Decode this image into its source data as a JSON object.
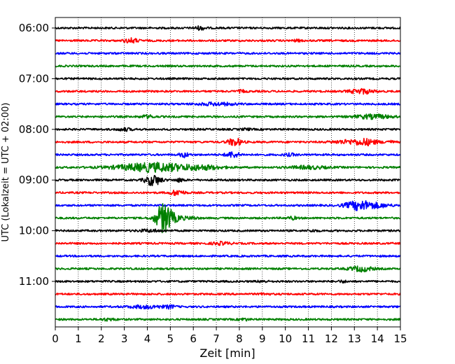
{
  "chart_data": {
    "type": "line",
    "title": "",
    "xlabel": "Zeit  [min]",
    "ylabel": "UTC (Lokalzeit = UTC + 02:00)",
    "xlim": [
      0,
      15
    ],
    "x_ticks": [
      "0",
      "1",
      "2",
      "3",
      "4",
      "5",
      "6",
      "7",
      "8",
      "9",
      "10",
      "11",
      "12",
      "13",
      "14",
      "15"
    ],
    "y_ticks": [
      {
        "label": "06:00",
        "trace": 0
      },
      {
        "label": "07:00",
        "trace": 4
      },
      {
        "label": "08:00",
        "trace": 8
      },
      {
        "label": "09:00",
        "trace": 12
      },
      {
        "label": "10:00",
        "trace": 16
      },
      {
        "label": "11:00",
        "trace": 20
      }
    ],
    "vertical_grid": "dotted, every 1 min",
    "trace_interval_min": 15,
    "color_cycle": [
      "#000000",
      "#ff0000",
      "#0000ff",
      "#008000"
    ],
    "traces": [
      {
        "start": "06:00",
        "color": "#000000",
        "events": [
          [
            6.3,
            1.5,
            0.25
          ]
        ]
      },
      {
        "start": "06:15",
        "color": "#ff0000",
        "events": [
          [
            3.3,
            2,
            0.3
          ],
          [
            10.5,
            0.8,
            0.2
          ]
        ]
      },
      {
        "start": "06:30",
        "color": "#0000ff",
        "events": []
      },
      {
        "start": "06:45",
        "color": "#008000",
        "events": []
      },
      {
        "start": "07:00",
        "color": "#000000",
        "events": []
      },
      {
        "start": "07:15",
        "color": "#ff0000",
        "events": [
          [
            8.1,
            1,
            0.2
          ],
          [
            13.3,
            2.2,
            0.5
          ]
        ]
      },
      {
        "start": "07:30",
        "color": "#0000ff",
        "events": [
          [
            7.0,
            1.2,
            0.8
          ]
        ]
      },
      {
        "start": "07:45",
        "color": "#008000",
        "events": [
          [
            4.0,
            1.3,
            0.3
          ],
          [
            13.8,
            1.8,
            0.8
          ]
        ]
      },
      {
        "start": "08:00",
        "color": "#000000",
        "events": [
          [
            3.0,
            1.2,
            0.3
          ],
          [
            8.3,
            0.8,
            0.2
          ]
        ]
      },
      {
        "start": "08:15",
        "color": "#ff0000",
        "events": [
          [
            7.8,
            3.5,
            0.3
          ],
          [
            12.6,
            1.5,
            0.6
          ],
          [
            13.5,
            2.8,
            0.5
          ],
          [
            14.5,
            1.2,
            0.2
          ]
        ]
      },
      {
        "start": "08:30",
        "color": "#0000ff",
        "events": [
          [
            5.6,
            2.2,
            0.2
          ],
          [
            7.7,
            2.5,
            0.3
          ],
          [
            10.2,
            1,
            0.3
          ]
        ]
      },
      {
        "start": "08:45",
        "color": "#008000",
        "events": [
          [
            4.3,
            4,
            1.6
          ],
          [
            6.5,
            1.5,
            0.8
          ],
          [
            11.0,
            1.3,
            0.8
          ]
        ]
      },
      {
        "start": "09:00",
        "color": "#000000",
        "events": [
          [
            4.25,
            5,
            0.35
          ],
          [
            5.4,
            1.5,
            0.2
          ]
        ]
      },
      {
        "start": "09:15",
        "color": "#ff0000",
        "events": [
          [
            5.3,
            2.5,
            0.3
          ]
        ]
      },
      {
        "start": "09:30",
        "color": "#0000ff",
        "events": [
          [
            13.2,
            4,
            0.6
          ],
          [
            14.0,
            1.5,
            0.6
          ]
        ]
      },
      {
        "start": "09:45",
        "color": "#008000",
        "events": [
          [
            4.72,
            14,
            0.35
          ],
          [
            5.3,
            2,
            0.4
          ],
          [
            6.0,
            1.2,
            0.2
          ],
          [
            10.3,
            1.3,
            0.2
          ]
        ]
      },
      {
        "start": "10:00",
        "color": "#000000",
        "events": [
          [
            4.1,
            1,
            0.5
          ],
          [
            11.2,
            0.8,
            0.2
          ]
        ]
      },
      {
        "start": "10:15",
        "color": "#ff0000",
        "events": [
          [
            7.2,
            1.2,
            0.4
          ]
        ]
      },
      {
        "start": "10:30",
        "color": "#0000ff",
        "events": []
      },
      {
        "start": "10:45",
        "color": "#008000",
        "events": [
          [
            13.3,
            2.3,
            0.5
          ]
        ]
      },
      {
        "start": "11:00",
        "color": "#000000",
        "events": [
          [
            9.0,
            0.8,
            0.2
          ],
          [
            12.5,
            0.8,
            0.2
          ]
        ]
      },
      {
        "start": "11:15",
        "color": "#ff0000",
        "events": [
          [
            9.1,
            0.8,
            0.2
          ]
        ]
      },
      {
        "start": "11:30",
        "color": "#0000ff",
        "events": [
          [
            4.0,
            1.3,
            0.8
          ],
          [
            5.0,
            1.2,
            0.2
          ]
        ]
      },
      {
        "start": "11:45",
        "color": "#008000",
        "events": [
          [
            2.3,
            1,
            0.3
          ],
          [
            8.2,
            1,
            0.2
          ]
        ]
      }
    ]
  }
}
